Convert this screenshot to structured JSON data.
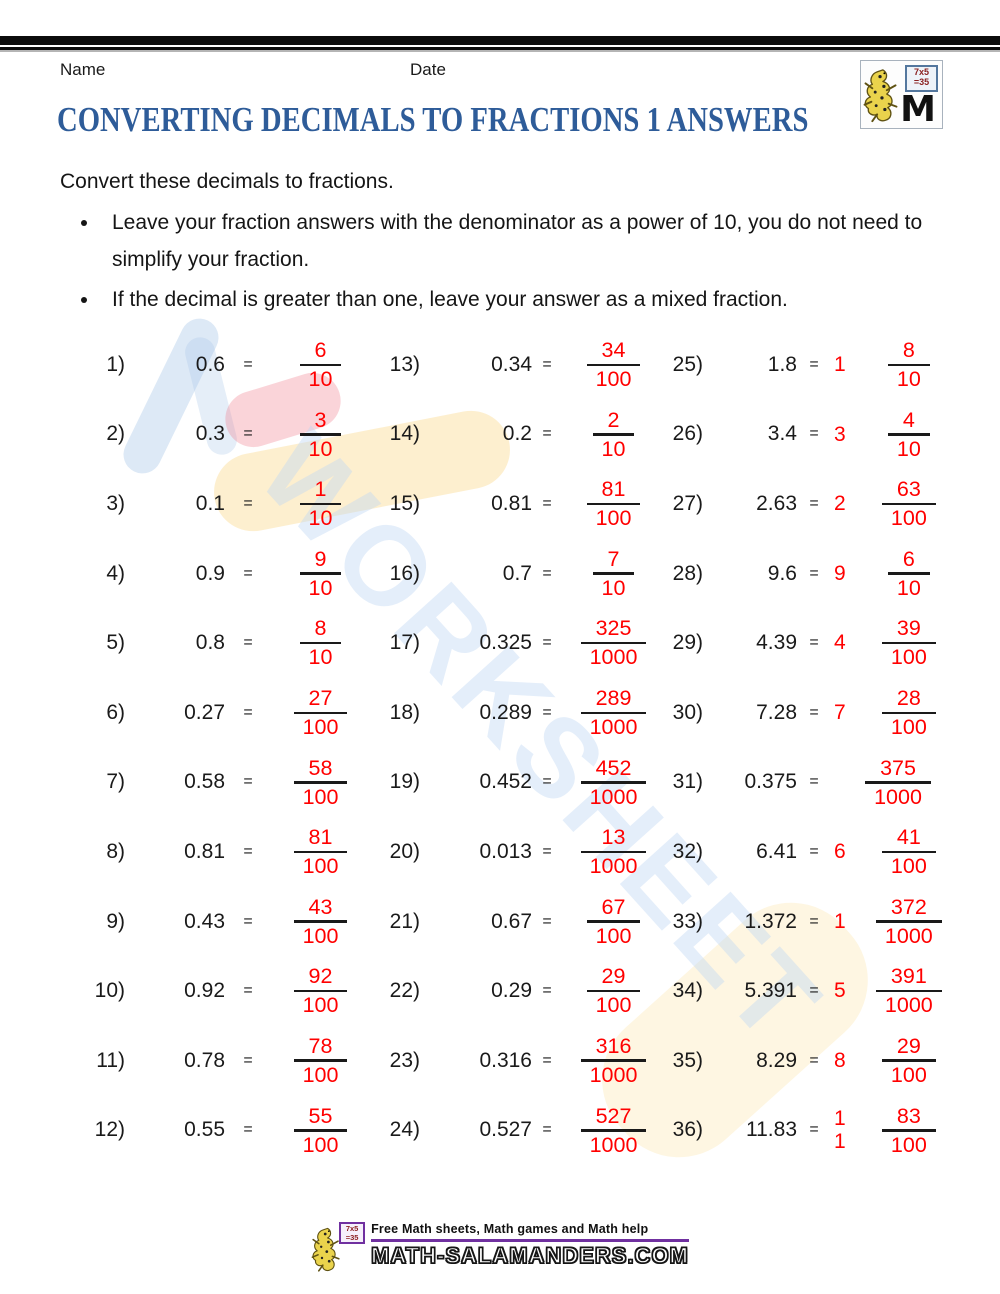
{
  "page": {
    "name_label": "Name",
    "date_label": "Date",
    "title": "CONVERTING DECIMALS TO FRACTIONS 1 ANSWERS",
    "intro": "Convert these decimals to fractions.",
    "bullets": [
      "Leave your fraction answers with the denominator as a power of 10, you do not need to simplify your fraction.",
      "If the decimal is greater than one, leave your answer as a mixed fraction."
    ]
  },
  "colors": {
    "answer_red": "#ff0000",
    "title_blue": "#2e5c99",
    "underline_purple": "#7030a0",
    "rule_black": "#0c0c0c"
  },
  "watermark": "WORKSHEET",
  "logo": {
    "board_line1": "7x5",
    "board_line2": "=35",
    "letter": "M"
  },
  "equals": "=",
  "columns": [
    [
      {
        "n": "1)",
        "d": "0.6",
        "w": "",
        "num": "6",
        "den": "10"
      },
      {
        "n": "2)",
        "d": "0.3",
        "w": "",
        "num": "3",
        "den": "10"
      },
      {
        "n": "3)",
        "d": "0.1",
        "w": "",
        "num": "1",
        "den": "10"
      },
      {
        "n": "4)",
        "d": "0.9",
        "w": "",
        "num": "9",
        "den": "10"
      },
      {
        "n": "5)",
        "d": "0.8",
        "w": "",
        "num": "8",
        "den": "10"
      },
      {
        "n": "6)",
        "d": "0.27",
        "w": "",
        "num": "27",
        "den": "100"
      },
      {
        "n": "7)",
        "d": "0.58",
        "w": "",
        "num": "58",
        "den": "100"
      },
      {
        "n": "8)",
        "d": "0.81",
        "w": "",
        "num": "81",
        "den": "100"
      },
      {
        "n": "9)",
        "d": "0.43",
        "w": "",
        "num": "43",
        "den": "100"
      },
      {
        "n": "10)",
        "d": "0.92",
        "w": "",
        "num": "92",
        "den": "100"
      },
      {
        "n": "11)",
        "d": "0.78",
        "w": "",
        "num": "78",
        "den": "100"
      },
      {
        "n": "12)",
        "d": "0.55",
        "w": "",
        "num": "55",
        "den": "100"
      }
    ],
    [
      {
        "n": "13)",
        "d": "0.34",
        "w": "",
        "num": "34",
        "den": "100"
      },
      {
        "n": "14)",
        "d": "0.2",
        "w": "",
        "num": "2",
        "den": "10"
      },
      {
        "n": "15)",
        "d": "0.81",
        "w": "",
        "num": "81",
        "den": "100"
      },
      {
        "n": "16)",
        "d": "0.7",
        "w": "",
        "num": "7",
        "den": "10"
      },
      {
        "n": "17)",
        "d": "0.325",
        "w": "",
        "num": "325",
        "den": "1000"
      },
      {
        "n": "18)",
        "d": "0.289",
        "w": "",
        "num": "289",
        "den": "1000"
      },
      {
        "n": "19)",
        "d": "0.452",
        "w": "",
        "num": "452",
        "den": "1000"
      },
      {
        "n": "20)",
        "d": "0.013",
        "w": "",
        "num": "13",
        "den": "1000"
      },
      {
        "n": "21)",
        "d": "0.67",
        "w": "",
        "num": "67",
        "den": "100"
      },
      {
        "n": "22)",
        "d": "0.29",
        "w": "",
        "num": "29",
        "den": "100"
      },
      {
        "n": "23)",
        "d": "0.316",
        "w": "",
        "num": "316",
        "den": "1000"
      },
      {
        "n": "24)",
        "d": "0.527",
        "w": "",
        "num": "527",
        "den": "1000"
      }
    ],
    [
      {
        "n": "25)",
        "d": "1.8",
        "w": "1",
        "num": "8",
        "den": "10"
      },
      {
        "n": "26)",
        "d": "3.4",
        "w": "3",
        "num": "4",
        "den": "10"
      },
      {
        "n": "27)",
        "d": "2.63",
        "w": "2",
        "num": "63",
        "den": "100"
      },
      {
        "n": "28)",
        "d": "9.6",
        "w": "9",
        "num": "6",
        "den": "10"
      },
      {
        "n": "29)",
        "d": "4.39",
        "w": "4",
        "num": "39",
        "den": "100"
      },
      {
        "n": "30)",
        "d": "7.28",
        "w": "7",
        "num": "28",
        "den": "100"
      },
      {
        "n": "31)",
        "d": "0.375",
        "w": "",
        "num": "375",
        "den": "1000"
      },
      {
        "n": "32)",
        "d": "6.41",
        "w": "6",
        "num": "41",
        "den": "100"
      },
      {
        "n": "33)",
        "d": "1.372",
        "w": "1",
        "num": "372",
        "den": "1000"
      },
      {
        "n": "34)",
        "d": "5.391",
        "w": "5",
        "num": "391",
        "den": "1000"
      },
      {
        "n": "35)",
        "d": "8.29",
        "w": "8",
        "num": "29",
        "den": "100"
      },
      {
        "n": "36)",
        "d": "11.83",
        "w": "1\n1",
        "num": "83",
        "den": "100"
      }
    ]
  ],
  "footer": {
    "tagline": "Free Math sheets, Math games and Math help",
    "site": "MATH-SALAMANDERS.COM",
    "board_line1": "7x5",
    "board_line2": "=35"
  }
}
